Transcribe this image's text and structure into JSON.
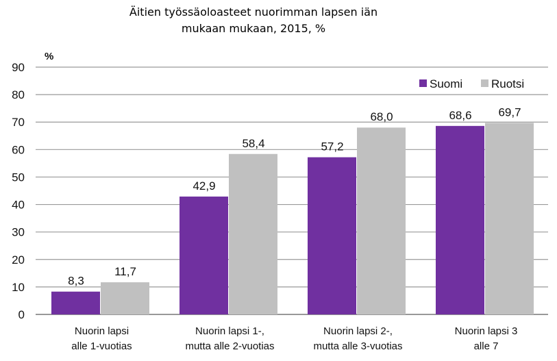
{
  "chart_data": {
    "type": "bar",
    "title_line1": "Äitien työssäoloasteet nuorimman lapsen iän",
    "title_line2": "mukaan mukaan, 2015, %",
    "ylabel": "%",
    "xlabel": "",
    "ylim": [
      0,
      90
    ],
    "yticks": [
      "0",
      "10",
      "20",
      "30",
      "40",
      "50",
      "60",
      "70",
      "80",
      "90"
    ],
    "grid": true,
    "legend_position": "top-right",
    "categories": [
      [
        "Nuorin lapsi",
        "alle 1-vuotias"
      ],
      [
        "Nuorin lapsi 1-,",
        "mutta alle 2-vuotias"
      ],
      [
        "Nuorin lapsi 2-,",
        "mutta alle 3-vuotias"
      ],
      [
        "Nuorin lapsi 3",
        "alle 7"
      ]
    ],
    "series": [
      {
        "name": "Suomi",
        "color": "#7030a0",
        "values": [
          8.3,
          42.9,
          57.2,
          68.6
        ],
        "labels": [
          "8,3",
          "42,9",
          "57,2",
          "68,6"
        ]
      },
      {
        "name": "Ruotsi",
        "color": "#c0c0c0",
        "values": [
          11.7,
          58.4,
          68.0,
          69.7
        ],
        "labels": [
          "11,7",
          "58,4",
          "68,0",
          "69,7"
        ]
      }
    ]
  }
}
